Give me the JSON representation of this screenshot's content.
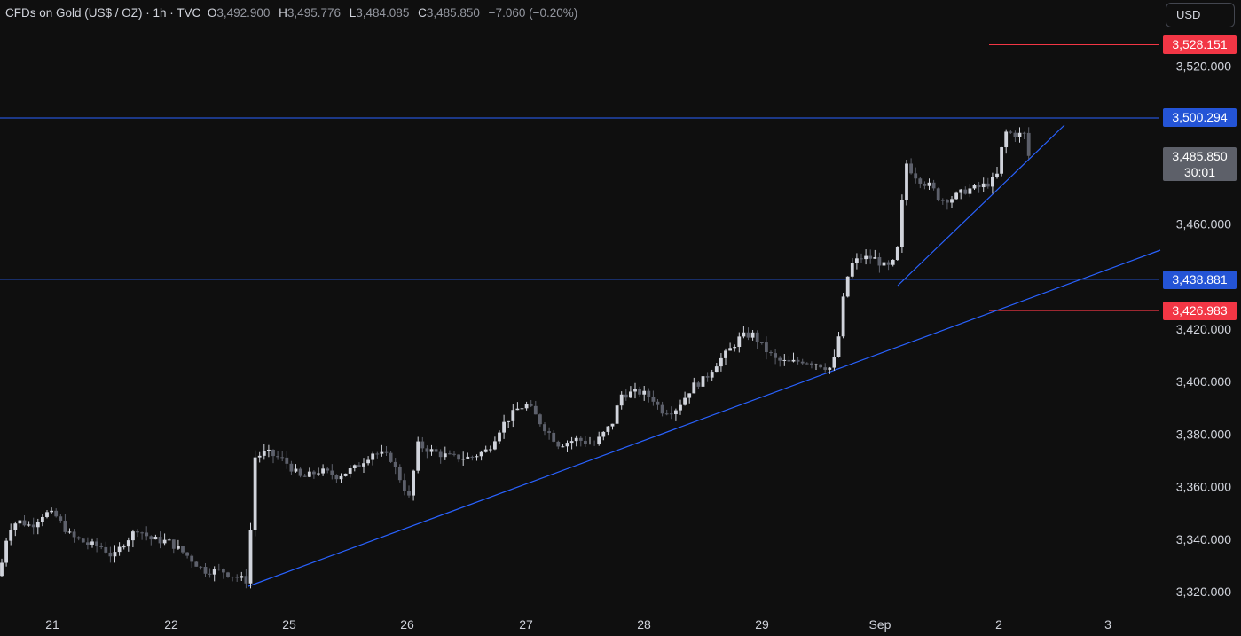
{
  "header": {
    "symbol": "CFDs on Gold (US$ / OZ) · 1h · TVC",
    "open_label": "O",
    "open": "3,492.900",
    "high_label": "H",
    "high": "3,495.776",
    "low_label": "L",
    "low": "3,484.085",
    "close_label": "C",
    "close": "3,485.850",
    "change": "−7.060 (−0.20%)"
  },
  "currency_button": "USD",
  "price_tags": {
    "red_top": "3,528.151",
    "blue_top": "3,500.294",
    "last_price": "3,485.850",
    "countdown": "30:01",
    "blue_bottom": "3,438.881",
    "red_bottom": "3,426.983"
  },
  "colors": {
    "background": "#0f0f0f",
    "bull_candle": "#d1d4dc",
    "bear_candle": "#5d606b",
    "trend_line": "#2962ff",
    "red_level": "#f23645",
    "blue_tag": "#2454d6"
  },
  "chart_data": {
    "type": "candlestick",
    "timeframe": "1h",
    "x_tick_labels": [
      "21",
      "22",
      "25",
      "26",
      "27",
      "28",
      "29",
      "Sep",
      "2",
      "3"
    ],
    "y_tick_labels": [
      "3,520.000",
      "3,460.000",
      "3,420.000",
      "3,400.000",
      "3,380.000",
      "3,360.000",
      "3,340.000",
      "3,320.000"
    ],
    "y_ticks": [
      3520,
      3460,
      3420,
      3400,
      3380,
      3360,
      3340,
      3320
    ],
    "ylim": [
      3314,
      3542
    ],
    "horizontal_levels": [
      {
        "price": 3528.151,
        "color": "red"
      },
      {
        "price": 3500.294,
        "color": "blue"
      },
      {
        "price": 3438.881,
        "color": "blue"
      },
      {
        "price": 3426.983,
        "color": "red"
      }
    ],
    "trendlines": [
      {
        "from": [
          "Aug 22 close",
          3322
        ],
        "to": [
          "Sep 3",
          3450
        ]
      },
      {
        "from": [
          "Sep 1",
          3440
        ],
        "to": [
          "Sep 2",
          3497
        ]
      }
    ],
    "last_close": 3485.85,
    "path_points": [
      [
        0,
        3326
      ],
      [
        4,
        3336
      ],
      [
        10,
        3344
      ],
      [
        20,
        3347
      ],
      [
        35,
        3345
      ],
      [
        50,
        3350
      ],
      [
        62,
        3349
      ],
      [
        80,
        3341
      ],
      [
        100,
        3338
      ],
      [
        115,
        3337
      ],
      [
        128,
        3333
      ],
      [
        138,
        3338
      ],
      [
        155,
        3344
      ],
      [
        170,
        3340
      ],
      [
        190,
        3339
      ],
      [
        210,
        3334
      ],
      [
        230,
        3328
      ],
      [
        250,
        3328
      ],
      [
        270,
        3325
      ],
      [
        280,
        3324
      ],
      [
        286,
        3371
      ],
      [
        300,
        3373
      ],
      [
        320,
        3370
      ],
      [
        340,
        3363
      ],
      [
        360,
        3366
      ],
      [
        380,
        3364
      ],
      [
        400,
        3367
      ],
      [
        420,
        3373
      ],
      [
        440,
        3371
      ],
      [
        462,
        3355
      ],
      [
        470,
        3376
      ],
      [
        490,
        3373
      ],
      [
        510,
        3371
      ],
      [
        530,
        3371
      ],
      [
        550,
        3374
      ],
      [
        565,
        3383
      ],
      [
        585,
        3390
      ],
      [
        595,
        3391
      ],
      [
        610,
        3384
      ],
      [
        630,
        3376
      ],
      [
        650,
        3378
      ],
      [
        670,
        3376
      ],
      [
        690,
        3384
      ],
      [
        700,
        3395
      ],
      [
        720,
        3396
      ],
      [
        735,
        3394
      ],
      [
        745,
        3389
      ],
      [
        760,
        3389
      ],
      [
        770,
        3393
      ],
      [
        780,
        3398
      ],
      [
        795,
        3401
      ],
      [
        805,
        3406
      ],
      [
        820,
        3411
      ],
      [
        835,
        3417
      ],
      [
        848,
        3418
      ],
      [
        860,
        3413
      ],
      [
        875,
        3408
      ],
      [
        890,
        3407
      ],
      [
        905,
        3408
      ],
      [
        920,
        3407
      ],
      [
        935,
        3405
      ],
      [
        943,
        3410
      ],
      [
        950,
        3430
      ],
      [
        958,
        3444
      ],
      [
        970,
        3447
      ],
      [
        985,
        3447
      ],
      [
        1000,
        3443
      ],
      [
        1010,
        3446
      ],
      [
        1015,
        3458
      ],
      [
        1020,
        3484
      ],
      [
        1030,
        3479
      ],
      [
        1040,
        3476
      ],
      [
        1050,
        3474
      ],
      [
        1060,
        3469
      ],
      [
        1075,
        3470
      ],
      [
        1090,
        3473
      ],
      [
        1105,
        3474
      ],
      [
        1118,
        3476
      ],
      [
        1125,
        3479
      ],
      [
        1132,
        3495
      ],
      [
        1145,
        3494
      ],
      [
        1155,
        3494
      ],
      [
        1160,
        3487
      ]
    ]
  }
}
